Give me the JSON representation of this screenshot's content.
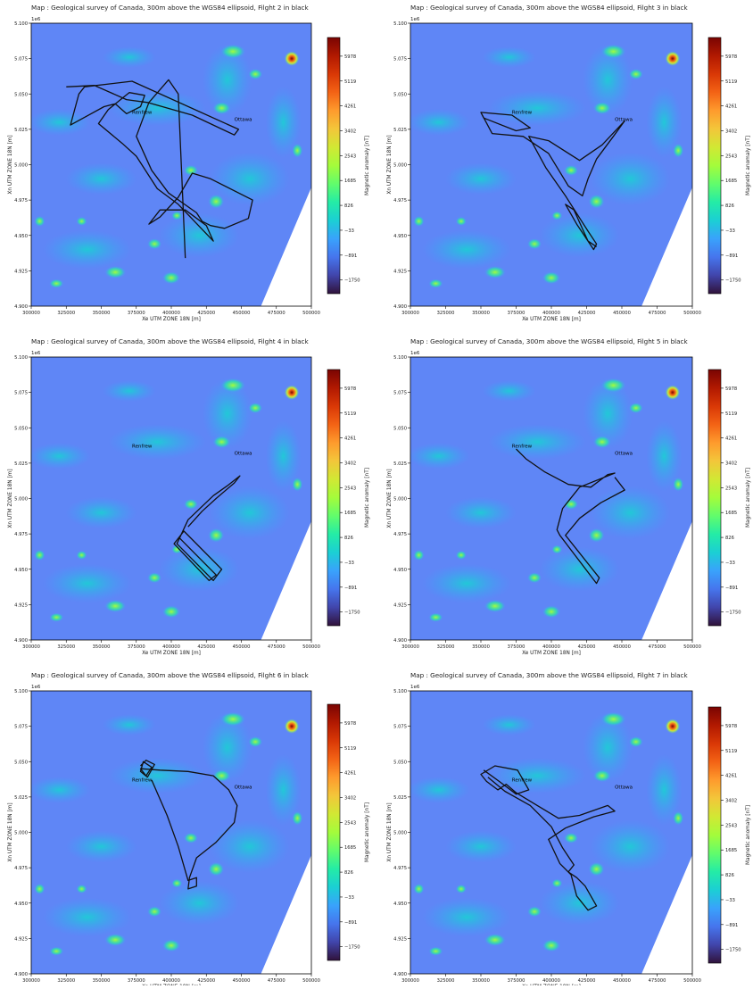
{
  "colors": {
    "background": "#5f86f6",
    "colormap": [
      "#30123b",
      "#4145ab",
      "#4675ed",
      "#39a2fc",
      "#1bcfd4",
      "#24eca6",
      "#61fc6c",
      "#a4fc3b",
      "#d1e834",
      "#f3c63a",
      "#fe9b2d",
      "#f36315",
      "#d93806",
      "#b11901",
      "#7a0402"
    ],
    "flight_path": "#111111",
    "city_label": "#000000"
  },
  "panels": [
    {
      "title": "Map : Geological survey of Canada, 300m above the WGS84 ellipsoid, Filght 2 in black"
    },
    {
      "title": "Map : Geological survey of Canada, 300m above the WGS84 ellipsoid, Filght 3 in black"
    },
    {
      "title": "Map : Geological survey of Canada, 300m above the WGS84 ellipsoid, Filght 4 in black"
    },
    {
      "title": "Map : Geological survey of Canada, 300m above the WGS84 ellipsoid, Filght 5 in black"
    },
    {
      "title": "Map : Geological survey of Canada, 300m above the WGS84 ellipsoid, Filght 6 in black"
    },
    {
      "title": "Map : Geological survey of Canada, 300m above the WGS84 ellipsoid, Filght 7 in black"
    }
  ],
  "chart_data": {
    "type": "heatmap",
    "xlabel": "Xe UTM ZONE 18N [m]",
    "ylabel": "Xn UTM ZONE 18N [m]",
    "y_offset_label": "1e6",
    "xlim": [
      300000,
      500000
    ],
    "ylim": [
      4.9,
      5.1
    ],
    "xticks": [
      "300000",
      "325000",
      "350000",
      "375000",
      "400000",
      "425000",
      "450000",
      "475000",
      "500000"
    ],
    "yticks": [
      "4.900",
      "4.925",
      "4.950",
      "4.975",
      "5.000",
      "5.025",
      "5.050",
      "5.075",
      "5.100"
    ],
    "colorbar": {
      "label": "Magnetic anomaly [nT]",
      "ticks": [
        "5978",
        "5119",
        "4261",
        "3402",
        "2543",
        "1685",
        "826",
        "−33",
        "−891",
        "−1750"
      ]
    },
    "cities": [
      {
        "name": "Ottawa",
        "x": 445000,
        "y": 5.031
      },
      {
        "name": "Renfrew",
        "x": 372000,
        "y": 5.036
      }
    ],
    "flights": [
      {
        "flight": "2",
        "path": [
          [
            325000,
            5.055
          ],
          [
            345000,
            5.056
          ],
          [
            368000,
            5.046
          ],
          [
            383000,
            5.044
          ],
          [
            415000,
            5.035
          ],
          [
            445000,
            5.021
          ],
          [
            448000,
            5.025
          ],
          [
            372000,
            5.059
          ],
          [
            338000,
            5.055
          ],
          [
            334000,
            5.05
          ],
          [
            328000,
            5.028
          ],
          [
            352000,
            5.041
          ],
          [
            360000,
            5.043
          ],
          [
            368000,
            5.036
          ],
          [
            378000,
            5.041
          ],
          [
            381000,
            5.049
          ],
          [
            370000,
            5.051
          ],
          [
            365000,
            5.047
          ],
          [
            355000,
            5.039
          ],
          [
            348000,
            5.029
          ],
          [
            365000,
            5.015
          ],
          [
            375000,
            5.006
          ],
          [
            390000,
            4.983
          ],
          [
            405000,
            4.972
          ],
          [
            430000,
            4.946
          ],
          [
            425000,
            4.957
          ],
          [
            410000,
            4.968
          ],
          [
            392000,
            4.968
          ],
          [
            384000,
            4.958
          ],
          [
            392000,
            4.963
          ],
          [
            405000,
            4.977
          ],
          [
            415000,
            4.994
          ],
          [
            428000,
            4.99
          ],
          [
            458000,
            4.975
          ],
          [
            455000,
            4.962
          ],
          [
            438000,
            4.955
          ],
          [
            428000,
            4.957
          ],
          [
            422000,
            4.96
          ],
          [
            418000,
            4.966
          ],
          [
            398000,
            4.98
          ],
          [
            386000,
            4.996
          ],
          [
            375000,
            5.02
          ],
          [
            384000,
            5.044
          ],
          [
            398000,
            5.06
          ],
          [
            405000,
            5.05
          ],
          [
            410000,
            4.934
          ]
        ]
      },
      {
        "flight": "3",
        "path": [
          [
            350000,
            5.037
          ],
          [
            372000,
            5.035
          ],
          [
            385000,
            5.026
          ],
          [
            375000,
            5.024
          ],
          [
            352000,
            5.033
          ],
          [
            350000,
            5.037
          ],
          [
            358000,
            5.022
          ],
          [
            380000,
            5.02
          ],
          [
            398000,
            5.008
          ],
          [
            412000,
            4.985
          ],
          [
            422000,
            4.978
          ],
          [
            426000,
            4.99
          ],
          [
            432000,
            5.004
          ],
          [
            444000,
            5.02
          ],
          [
            452000,
            5.031
          ],
          [
            436000,
            5.014
          ],
          [
            420000,
            5.003
          ],
          [
            398000,
            5.017
          ],
          [
            384000,
            5.02
          ],
          [
            396000,
            4.998
          ],
          [
            410000,
            4.978
          ],
          [
            426000,
            4.953
          ],
          [
            432000,
            4.944
          ],
          [
            430000,
            4.94
          ],
          [
            418000,
            4.958
          ],
          [
            410000,
            4.972
          ],
          [
            416000,
            4.968
          ],
          [
            426000,
            4.946
          ],
          [
            432000,
            4.942
          ]
        ]
      },
      {
        "flight": "4",
        "path": [
          [
            406000,
            4.972
          ],
          [
            432000,
            4.946
          ],
          [
            427000,
            4.942
          ],
          [
            402000,
            4.968
          ],
          [
            409000,
            4.977
          ],
          [
            436000,
            4.95
          ],
          [
            430000,
            4.942
          ],
          [
            404000,
            4.968
          ],
          [
            412000,
            4.985
          ],
          [
            430000,
            5.002
          ],
          [
            440000,
            5.009
          ],
          [
            449000,
            5.016
          ],
          [
            445000,
            5.011
          ],
          [
            432000,
            5.0
          ],
          [
            422000,
            4.991
          ],
          [
            412000,
            4.98
          ]
        ]
      },
      {
        "flight": "5",
        "path": [
          [
            375000,
            5.035
          ],
          [
            382000,
            5.028
          ],
          [
            395000,
            5.019
          ],
          [
            412000,
            5.01
          ],
          [
            428000,
            5.008
          ],
          [
            440000,
            5.017
          ],
          [
            445000,
            5.018
          ],
          [
            420000,
            5.008
          ],
          [
            408000,
            4.993
          ],
          [
            404000,
            4.978
          ],
          [
            406000,
            4.974
          ],
          [
            432000,
            4.94
          ],
          [
            434000,
            4.944
          ],
          [
            410000,
            4.974
          ],
          [
            420000,
            4.986
          ],
          [
            435000,
            4.997
          ],
          [
            452000,
            5.006
          ],
          [
            445000,
            5.015
          ]
        ]
      },
      {
        "flight": "6",
        "path": [
          [
            378000,
            5.047
          ],
          [
            382000,
            5.051
          ],
          [
            388000,
            5.048
          ],
          [
            383000,
            5.039
          ],
          [
            378000,
            5.043
          ],
          [
            380000,
            5.05
          ],
          [
            386000,
            5.046
          ],
          [
            382000,
            5.04
          ],
          [
            378000,
            5.045
          ],
          [
            392000,
            5.044
          ],
          [
            412000,
            5.043
          ],
          [
            430000,
            5.04
          ],
          [
            441000,
            5.03
          ],
          [
            447000,
            5.019
          ],
          [
            445000,
            5.007
          ],
          [
            432000,
            4.993
          ],
          [
            418000,
            4.982
          ],
          [
            413000,
            4.968
          ],
          [
            412000,
            4.96
          ],
          [
            418000,
            4.962
          ],
          [
            418000,
            4.968
          ],
          [
            412000,
            4.966
          ],
          [
            405000,
            4.99
          ],
          [
            397000,
            5.012
          ],
          [
            386000,
            5.037
          ]
        ]
      },
      {
        "flight": "7",
        "path": [
          [
            352000,
            5.044
          ],
          [
            363000,
            5.036
          ],
          [
            375000,
            5.027
          ],
          [
            384000,
            5.03
          ],
          [
            376000,
            5.044
          ],
          [
            360000,
            5.047
          ],
          [
            350000,
            5.041
          ],
          [
            354000,
            5.036
          ],
          [
            362000,
            5.03
          ],
          [
            368000,
            5.034
          ],
          [
            375000,
            5.028
          ],
          [
            390000,
            5.019
          ],
          [
            405000,
            5.01
          ],
          [
            420000,
            5.012
          ],
          [
            440000,
            5.019
          ],
          [
            445000,
            5.015
          ],
          [
            430000,
            5.011
          ],
          [
            410000,
            5.003
          ],
          [
            398000,
            4.995
          ],
          [
            406000,
            4.978
          ],
          [
            414000,
            4.97
          ],
          [
            418000,
            4.955
          ],
          [
            426000,
            4.945
          ],
          [
            432000,
            4.948
          ],
          [
            424000,
            4.962
          ],
          [
            418000,
            4.968
          ],
          [
            412000,
            4.972
          ],
          [
            416000,
            4.977
          ],
          [
            408000,
            4.989
          ],
          [
            400000,
            5.004
          ],
          [
            385000,
            5.019
          ],
          [
            367000,
            5.029
          ],
          [
            355000,
            5.039
          ]
        ]
      }
    ]
  }
}
